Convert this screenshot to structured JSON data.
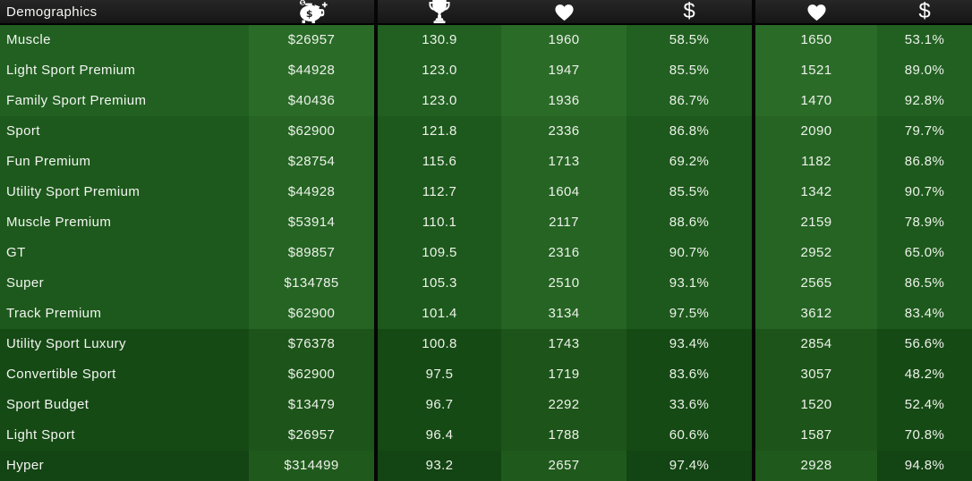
{
  "header": {
    "title": "Demographics",
    "columns": [
      {
        "icon": "piggy-bank-icon"
      },
      {
        "icon": "trophy-icon"
      },
      {
        "icon": "heart-icon"
      },
      {
        "icon": "dollar-icon"
      },
      {
        "icon": "heart-icon"
      },
      {
        "icon": "dollar-icon"
      }
    ]
  },
  "rows": [
    {
      "label": "Muscle",
      "values": [
        "$26957",
        "130.9",
        "1960",
        "58.5%",
        "1650",
        "53.1%"
      ],
      "group": "1"
    },
    {
      "label": "Light Sport Premium",
      "values": [
        "$44928",
        "123.0",
        "1947",
        "85.5%",
        "1521",
        "89.0%"
      ],
      "group": "1"
    },
    {
      "label": "Family Sport Premium",
      "values": [
        "$40436",
        "123.0",
        "1936",
        "86.7%",
        "1470",
        "92.8%"
      ],
      "group": "1"
    },
    {
      "label": "Sport",
      "values": [
        "$62900",
        "121.8",
        "2336",
        "86.8%",
        "2090",
        "79.7%"
      ],
      "group": "2"
    },
    {
      "label": "Fun Premium",
      "values": [
        "$28754",
        "115.6",
        "1713",
        "69.2%",
        "1182",
        "86.8%"
      ],
      "group": "2"
    },
    {
      "label": "Utility Sport Premium",
      "values": [
        "$44928",
        "112.7",
        "1604",
        "85.5%",
        "1342",
        "90.7%"
      ],
      "group": "2"
    },
    {
      "label": "Muscle Premium",
      "values": [
        "$53914",
        "110.1",
        "2117",
        "88.6%",
        "2159",
        "78.9%"
      ],
      "group": "2"
    },
    {
      "label": "GT",
      "values": [
        "$89857",
        "109.5",
        "2316",
        "90.7%",
        "2952",
        "65.0%"
      ],
      "group": "2"
    },
    {
      "label": "Super",
      "values": [
        "$134785",
        "105.3",
        "2510",
        "93.1%",
        "2565",
        "86.5%"
      ],
      "group": "2"
    },
    {
      "label": "Track Premium",
      "values": [
        "$62900",
        "101.4",
        "3134",
        "97.5%",
        "3612",
        "83.4%"
      ],
      "group": "2"
    },
    {
      "label": "Utility Sport Luxury",
      "values": [
        "$76378",
        "100.8",
        "1743",
        "93.4%",
        "2854",
        "56.6%"
      ],
      "group": "3"
    },
    {
      "label": "Convertible Sport",
      "values": [
        "$62900",
        "97.5",
        "1719",
        "83.6%",
        "3057",
        "48.2%"
      ],
      "group": "3"
    },
    {
      "label": "Sport Budget",
      "values": [
        "$13479",
        "96.7",
        "2292",
        "33.6%",
        "1520",
        "52.4%"
      ],
      "group": "3"
    },
    {
      "label": "Light Sport",
      "values": [
        "$26957",
        "96.4",
        "1788",
        "60.6%",
        "1587",
        "70.8%"
      ],
      "group": "3"
    },
    {
      "label": "Hyper",
      "values": [
        "$314499",
        "93.2",
        "2657",
        "97.4%",
        "2928",
        "94.8%"
      ],
      "group": "4"
    }
  ],
  "colors": {
    "header_bg": "#1d1d1d",
    "separator": "#060606",
    "text": "#edf2ea",
    "groups": {
      "1": {
        "dark": "#216021",
        "light": "#2a6b28"
      },
      "2": {
        "dark": "#1d591c",
        "light": "#256423"
      },
      "3": {
        "dark": "#164a15",
        "light": "#1d5419"
      },
      "4": {
        "dark": "#134413",
        "light": "#1f5a1c"
      }
    }
  }
}
